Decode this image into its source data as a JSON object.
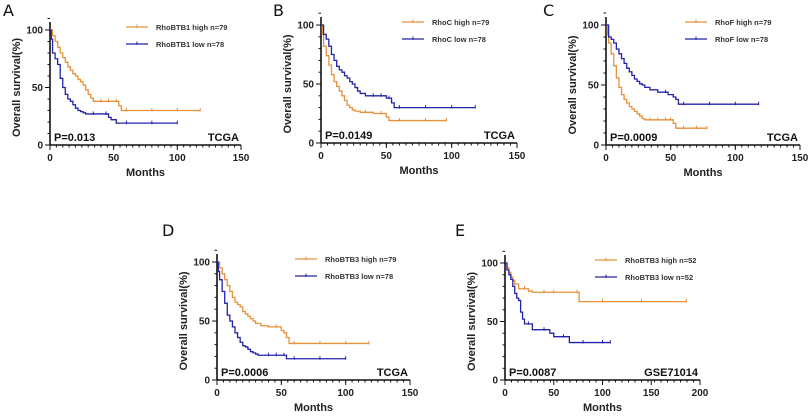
{
  "colors": {
    "high": "#e8913a",
    "low": "#2323a8"
  },
  "chart_data": [
    {
      "type": "line",
      "panel": "A",
      "xlabel": "Months",
      "ylabel": "Overall survival(%)",
      "xlim": [
        0,
        150
      ],
      "ylim": [
        0,
        100
      ],
      "xticks": [
        0,
        50,
        100,
        150
      ],
      "yticks": [
        0,
        50,
        100
      ],
      "p_value": "P=0.013",
      "dataset": "TCGA",
      "legend_position": "top-right",
      "series": [
        {
          "name": "RhoBTB1 high n=79",
          "group": "high",
          "x": [
            0,
            2,
            4,
            6,
            8,
            10,
            12,
            14,
            16,
            18,
            20,
            22,
            24,
            26,
            28,
            30,
            32,
            34,
            40,
            46,
            52,
            54,
            56,
            60,
            80,
            100,
            118
          ],
          "y": [
            100,
            95,
            90,
            85,
            80,
            76,
            72,
            68,
            65,
            62,
            60,
            57,
            55,
            52,
            48,
            44,
            41,
            38,
            38,
            38,
            38,
            34,
            30,
            30,
            30,
            30,
            30
          ]
        },
        {
          "name": "RhoBTB1 low n=78",
          "group": "low",
          "x": [
            0,
            1,
            2,
            4,
            6,
            8,
            10,
            12,
            14,
            16,
            18,
            20,
            22,
            24,
            26,
            28,
            34,
            44,
            46,
            48,
            52,
            60,
            80,
            100
          ],
          "y": [
            100,
            92,
            80,
            75,
            70,
            58,
            50,
            44,
            40,
            38,
            35,
            32,
            30,
            29,
            28,
            27,
            27,
            27,
            24,
            22,
            19,
            19,
            19,
            19
          ]
        }
      ]
    },
    {
      "type": "line",
      "panel": "B",
      "xlabel": "Months",
      "ylabel": "Overall survival(%)",
      "xlim": [
        0,
        150
      ],
      "ylim": [
        0,
        100
      ],
      "xticks": [
        0,
        50,
        100,
        150
      ],
      "yticks": [
        0,
        50,
        100
      ],
      "p_value": "P=0.0149",
      "dataset": "TCGA",
      "legend_position": "top-right",
      "series": [
        {
          "name": "RhoC high n=79",
          "group": "high",
          "x": [
            0,
            1,
            2,
            4,
            6,
            8,
            10,
            12,
            14,
            16,
            18,
            20,
            22,
            24,
            26,
            30,
            34,
            40,
            46,
            50,
            52,
            60,
            80,
            96
          ],
          "y": [
            100,
            92,
            82,
            74,
            66,
            58,
            52,
            48,
            44,
            40,
            36,
            32,
            30,
            28,
            27,
            26,
            26,
            25,
            25,
            22,
            19,
            19,
            19,
            19
          ]
        },
        {
          "name": "RhoC low n=78",
          "group": "low",
          "x": [
            0,
            2,
            4,
            6,
            8,
            10,
            12,
            14,
            16,
            18,
            20,
            22,
            24,
            26,
            28,
            30,
            34,
            40,
            46,
            50,
            52,
            54,
            56,
            60,
            80,
            100,
            118
          ],
          "y": [
            100,
            92,
            88,
            82,
            75,
            70,
            65,
            62,
            60,
            57,
            55,
            52,
            50,
            47,
            44,
            42,
            40,
            40,
            40,
            38,
            38,
            34,
            30,
            30,
            30,
            30,
            30
          ]
        }
      ]
    },
    {
      "type": "line",
      "panel": "C",
      "xlabel": "Months",
      "ylabel": "Overall survival(%)",
      "xlim": [
        0,
        150
      ],
      "ylim": [
        0,
        100
      ],
      "xticks": [
        0,
        50,
        100,
        150
      ],
      "yticks": [
        0,
        50,
        100
      ],
      "p_value": "P=0.0009",
      "dataset": "TCGA",
      "legend_position": "top-right",
      "series": [
        {
          "name": "RhoF high n=79",
          "group": "high",
          "x": [
            0,
            1,
            2,
            4,
            6,
            8,
            10,
            12,
            14,
            16,
            18,
            20,
            22,
            24,
            26,
            28,
            30,
            34,
            40,
            46,
            50,
            52,
            54,
            60,
            70,
            78
          ],
          "y": [
            100,
            92,
            85,
            76,
            66,
            56,
            48,
            42,
            38,
            35,
            32,
            30,
            28,
            26,
            24,
            22,
            21,
            21,
            21,
            21,
            21,
            18,
            14,
            14,
            14,
            14
          ]
        },
        {
          "name": "RhoF low n=78",
          "group": "low",
          "x": [
            0,
            2,
            4,
            6,
            8,
            10,
            12,
            14,
            16,
            18,
            20,
            22,
            24,
            26,
            28,
            30,
            34,
            40,
            46,
            48,
            52,
            54,
            56,
            60,
            80,
            100,
            118
          ],
          "y": [
            100,
            90,
            88,
            85,
            80,
            76,
            72,
            68,
            64,
            61,
            58,
            55,
            53,
            51,
            50,
            48,
            46,
            44,
            44,
            42,
            40,
            38,
            34,
            34,
            34,
            34,
            34
          ]
        }
      ]
    },
    {
      "type": "line",
      "panel": "D",
      "xlabel": "Months",
      "ylabel": "Overall survival(%)",
      "xlim": [
        0,
        150
      ],
      "ylim": [
        0,
        100
      ],
      "xticks": [
        0,
        50,
        100,
        150
      ],
      "yticks": [
        0,
        50,
        100
      ],
      "p_value": "P=0.0006",
      "dataset": "TCGA",
      "legend_position": "top-right",
      "series": [
        {
          "name": "RhoBTB3 high n=79",
          "group": "high",
          "x": [
            0,
            2,
            4,
            6,
            8,
            10,
            12,
            14,
            16,
            18,
            20,
            22,
            24,
            26,
            28,
            30,
            34,
            40,
            46,
            50,
            52,
            54,
            56,
            60,
            80,
            100,
            118
          ],
          "y": [
            100,
            95,
            90,
            85,
            80,
            75,
            70,
            66,
            64,
            62,
            58,
            56,
            54,
            52,
            50,
            48,
            46,
            45,
            45,
            42,
            40,
            36,
            31,
            31,
            31,
            31,
            31
          ]
        },
        {
          "name": "RhoBTB3 low n=78",
          "group": "low",
          "x": [
            0,
            1,
            2,
            4,
            6,
            8,
            10,
            12,
            14,
            16,
            18,
            20,
            22,
            24,
            26,
            28,
            30,
            32,
            40,
            46,
            52,
            54,
            60,
            80,
            100
          ],
          "y": [
            100,
            92,
            85,
            75,
            65,
            55,
            50,
            45,
            40,
            36,
            32,
            29,
            28,
            26,
            24,
            23,
            22,
            21,
            21,
            21,
            21,
            18,
            18,
            18,
            18
          ]
        }
      ]
    },
    {
      "type": "line",
      "panel": "E",
      "xlabel": "Months",
      "ylabel": "Overall survival(%)",
      "xlim": [
        0,
        200
      ],
      "ylim": [
        0,
        100
      ],
      "xticks": [
        0,
        50,
        100,
        150,
        200
      ],
      "yticks": [
        0,
        50,
        100
      ],
      "p_value": "P=0.0087",
      "dataset": "GSE71014",
      "legend_position": "top-right",
      "series": [
        {
          "name": "RhoBTB3 high n=52",
          "group": "high",
          "x": [
            0,
            2,
            4,
            6,
            8,
            10,
            14,
            20,
            24,
            28,
            40,
            50,
            74,
            76,
            100,
            140,
            186
          ],
          "y": [
            100,
            96,
            92,
            88,
            85,
            82,
            78,
            78,
            76,
            75,
            75,
            75,
            75,
            67,
            67,
            67,
            67
          ]
        },
        {
          "name": "RhoBTB3 low n=52",
          "group": "low",
          "x": [
            0,
            2,
            4,
            6,
            8,
            10,
            12,
            14,
            16,
            18,
            20,
            24,
            28,
            40,
            46,
            50,
            60,
            66,
            80,
            100,
            108
          ],
          "y": [
            100,
            94,
            90,
            86,
            80,
            74,
            70,
            68,
            58,
            52,
            48,
            48,
            43,
            43,
            40,
            37,
            37,
            32,
            32,
            32,
            32
          ]
        }
      ]
    }
  ]
}
